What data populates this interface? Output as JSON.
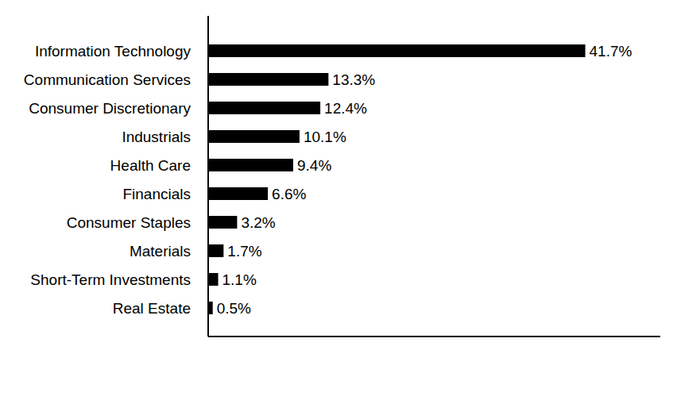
{
  "chart_data": {
    "type": "bar",
    "orientation": "horizontal",
    "categories": [
      "Information Technology",
      "Communication Services",
      "Consumer Discretionary",
      "Industrials",
      "Health Care",
      "Financials",
      "Consumer Staples",
      "Materials",
      "Short-Term Investments",
      "Real Estate"
    ],
    "values": [
      41.7,
      13.3,
      12.4,
      10.1,
      9.4,
      6.6,
      3.2,
      1.7,
      1.1,
      0.5
    ],
    "value_labels": [
      "41.7%",
      "13.3%",
      "12.4%",
      "10.1%",
      "9.4%",
      "6.6%",
      "3.2%",
      "1.7%",
      "1.1%",
      "0.5%"
    ],
    "color": "#000000",
    "xlim": [
      0,
      50
    ],
    "xticks": [],
    "data_labels": true,
    "tick_labels": "y",
    "grid": false
  }
}
